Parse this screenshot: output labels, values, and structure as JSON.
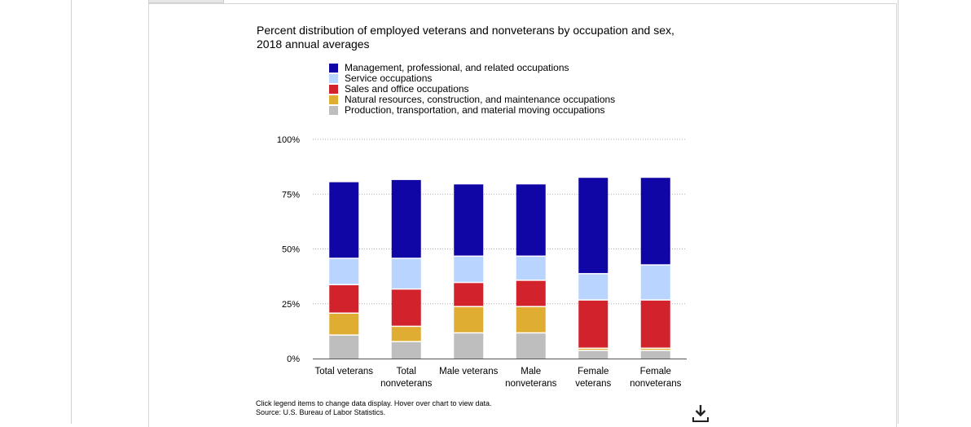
{
  "chart_data": {
    "type": "bar",
    "stacked": true,
    "title": "Percent distribution of employed veterans and nonveterans by occupation and sex, 2018 annual averages",
    "categories": [
      [
        "Total veterans"
      ],
      [
        "Total",
        "nonveterans"
      ],
      [
        "Male veterans"
      ],
      [
        "Male",
        "nonveterans"
      ],
      [
        "Female",
        "veterans"
      ],
      [
        "Female",
        "nonveterans"
      ]
    ],
    "series": [
      {
        "name": "Management, professional, and related occupations",
        "color": "#1006a6",
        "values": [
          35,
          36,
          33,
          33,
          44,
          40
        ]
      },
      {
        "name": "Service occupations",
        "color": "#b8d4ff",
        "values": [
          12,
          14,
          12,
          11,
          12,
          16
        ]
      },
      {
        "name": "Sales and office occupations",
        "color": "#d2222c",
        "values": [
          13,
          17,
          11,
          12,
          22,
          22
        ]
      },
      {
        "name": "Natural resources, construction, and maintenance occupations",
        "color": "#e0ad33",
        "values": [
          10,
          7,
          12,
          12,
          1,
          1
        ]
      },
      {
        "name": "Production, transportation, and material moving occupations",
        "color": "#bebebe",
        "values": [
          11,
          8,
          12,
          12,
          4,
          4
        ]
      }
    ],
    "stack_order": [
      "Production, transportation, and material moving occupations",
      "Natural resources, construction, and maintenance occupations",
      "Sales and office occupations",
      "Service occupations",
      "Management, professional, and related occupations"
    ],
    "y_ticks": [
      "0%",
      "25%",
      "50%",
      "75%",
      "100%"
    ],
    "ylim": [
      0,
      100
    ],
    "grid": true,
    "legend_position": "top"
  },
  "footer": {
    "instructions": "Click legend items to change data display. Hover over chart to view data.",
    "source": "Source: U.S. Bureau of Labor Statistics."
  },
  "icons": {
    "download": "download-icon"
  }
}
